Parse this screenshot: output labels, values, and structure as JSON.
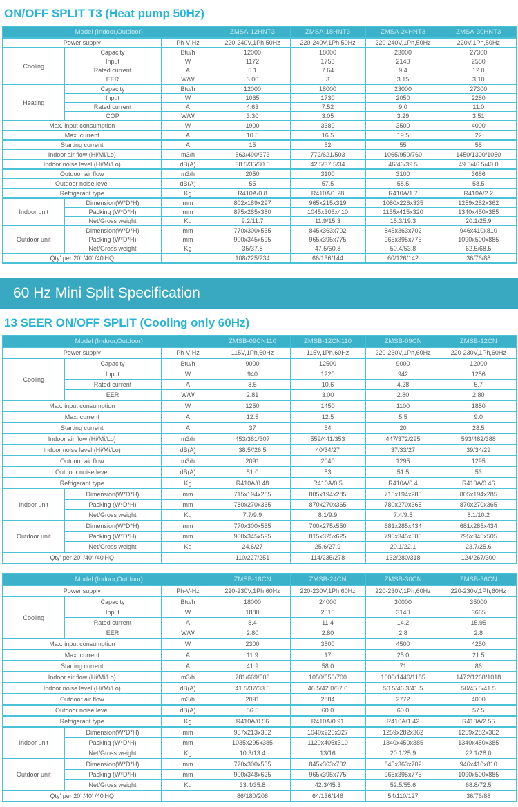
{
  "page": {
    "title1": "ON/OFF SPLIT T3 (Heat pump 50Hz)",
    "banner": "60 Hz Mini Split Specification",
    "title2": "13 SEER ON/OFF SPLIT (Cooling only 60Hz)"
  },
  "colors": {
    "accent_cyan": "#27b4d6",
    "table_header_bg": "#3bb2ca",
    "table_header_text": "#c9ecf4",
    "table_border": "#49c1d7",
    "banner_bg": "#38a9c0",
    "body_text": "#595a5c"
  },
  "tables": [
    {
      "model_label": "Model (Indoor,Outdoor)",
      "models": [
        "ZMSA-12HNT3",
        "ZMSA-18HNT3",
        "ZMSA-24HNT3",
        "ZMSA-30HNT3"
      ],
      "rows": [
        {
          "label": "Power supply",
          "unit": "Ph-V-Hz",
          "values": [
            "220-240V,1Ph,50Hz",
            "220-240V,1Ph,50Hz",
            "220-240V,1Ph,50Hz",
            "220V,1Ph,50Hz"
          ],
          "section": true
        },
        {
          "group": "Cooling",
          "group_span": 4,
          "label": "Capacity",
          "unit": "Btu/h",
          "values": [
            "12000",
            "18000",
            "23000",
            "27300"
          ],
          "section": true
        },
        {
          "in_group": true,
          "label": "Input",
          "unit": "W",
          "values": [
            "1172",
            "1758",
            "2140",
            "2580"
          ]
        },
        {
          "in_group": true,
          "label": "Rated current",
          "unit": "A",
          "values": [
            "5.1",
            "7.64",
            "9.4",
            "12.0"
          ]
        },
        {
          "in_group": true,
          "label": "EER",
          "unit": "W/W",
          "values": [
            "3.00",
            "3",
            "3.15",
            "3.10"
          ]
        },
        {
          "group": "Heating",
          "group_span": 4,
          "label": "Capacity",
          "unit": "Btu/h",
          "values": [
            "12000",
            "18000",
            "23000",
            "27300"
          ],
          "section": true
        },
        {
          "in_group": true,
          "label": "Input",
          "unit": "W",
          "values": [
            "1065",
            "1730",
            "2050",
            "2280"
          ]
        },
        {
          "in_group": true,
          "label": "Rated current",
          "unit": "A",
          "values": [
            "4.63",
            "7.52",
            "9.0",
            "11.0"
          ]
        },
        {
          "in_group": true,
          "label": "COP",
          "unit": "W/W",
          "values": [
            "3.30",
            "3.05",
            "3.29",
            "3.51"
          ]
        },
        {
          "label": "Max. input consumption",
          "unit": "W",
          "values": [
            "1900",
            "3380",
            "3500",
            "4000"
          ],
          "section": true
        },
        {
          "label": "Max. current",
          "unit": "A",
          "values": [
            "10.5",
            "16.5",
            "19.5",
            "22"
          ],
          "section": true
        },
        {
          "label": "Starting current",
          "unit": "A",
          "values": [
            "15",
            "52",
            "55",
            "58"
          ],
          "section": true
        },
        {
          "label": "Indoor air flow (Hi/Mi/Lo)",
          "unit": "m3/h",
          "values": [
            "563/490/373",
            "772/621/503",
            "1065/950/760",
            "1450/1300/1050"
          ],
          "section": true
        },
        {
          "label": "Indoor noise level (Hi/Mi/Lo)",
          "unit": "dB(A)",
          "values": [
            "38.5/35/30.5",
            "42.5/37.5/34",
            "46/43/39.5",
            "49.5/46.5/40.0"
          ],
          "section": true
        },
        {
          "label": "Outdoor air flow",
          "unit": "m3/h",
          "values": [
            "2050",
            "3100",
            "3100",
            "3686"
          ],
          "section": true
        },
        {
          "label": "Outdoor noise level",
          "unit": "dB(A)",
          "values": [
            "55",
            "57.5",
            "58.5",
            "58.5"
          ],
          "section": true
        },
        {
          "label": "Refrigerant type",
          "unit": "Kg",
          "values": [
            "R410A/0.8",
            "R410A/1.28",
            "R410A/1.7",
            "R410A/2.2"
          ],
          "section": true
        },
        {
          "group": "Indoor unit",
          "group_span": 3,
          "label": "Dimension(W*D*H)",
          "unit": "mm",
          "values": [
            "802x189x297",
            "965x215x319",
            "1080x226x335",
            "1259x282x362"
          ],
          "section": true
        },
        {
          "in_group": true,
          "label": "Packing   (W*D*H)",
          "unit": "mm",
          "values": [
            "875x285x380",
            "1045x305x410",
            "1155x415x320",
            "1340x450x385"
          ]
        },
        {
          "in_group": true,
          "label": "Net/Gross weight",
          "unit": "Kg",
          "values": [
            "9.2/11.7",
            "11.9/15.3",
            "15.3/19.3",
            "20.1/25.9"
          ]
        },
        {
          "group": "Outdoor unit",
          "group_span": 3,
          "label": "Dimension(W*D*H)",
          "unit": "mm",
          "values": [
            "770x300x555",
            "845x363x702",
            "845x363x702",
            "946x410x810"
          ],
          "section": true
        },
        {
          "in_group": true,
          "label": "Packing  (W*D*H)",
          "unit": "mm",
          "values": [
            "900x345x595",
            "965x395x775",
            "965x395x775",
            "1090x500x885"
          ]
        },
        {
          "in_group": true,
          "label": "Net/Gross weight",
          "unit": "Kg",
          "values": [
            "35/37.8",
            "47.5/50.8",
            "50.4/53.8",
            "62.5/68.5"
          ]
        },
        {
          "label": "Qty' per 20'  /40'  /40'HQ",
          "unit": "",
          "values": [
            "108/225/234",
            "66/136/144",
            "60/126/142",
            "36/76/88"
          ],
          "section": true
        }
      ]
    },
    {
      "model_label": "Model (Indoor,Outdoor)",
      "models": [
        "ZMSB-09CN110",
        "ZMSB-12CN110",
        "ZMSB-09CN",
        "ZMSB-12CN"
      ],
      "rows": [
        {
          "label": "Power supply",
          "unit": "Ph-V-Hz",
          "values": [
            "115V,1Ph,60Hz",
            "115V,1Ph,60Hz",
            "220-230V,1Ph,60Hz",
            "220-230V,1Ph,60Hz"
          ],
          "section": true
        },
        {
          "group": "Cooling",
          "group_span": 4,
          "label": "Capacity",
          "unit": "Btu/h",
          "values": [
            "9000",
            "12500",
            "9000",
            "12000"
          ],
          "section": true
        },
        {
          "in_group": true,
          "label": "Input",
          "unit": "W",
          "values": [
            "940",
            "1220",
            "942",
            "1256"
          ]
        },
        {
          "in_group": true,
          "label": "Rated current",
          "unit": "A",
          "values": [
            "8.5",
            "10.6",
            "4.28",
            "5.7"
          ]
        },
        {
          "in_group": true,
          "label": "EER",
          "unit": "W/W",
          "values": [
            "2.81",
            "3.00",
            "2.80",
            "2.80"
          ]
        },
        {
          "label": "Max. input consumption",
          "unit": "W",
          "values": [
            "1250",
            "1450",
            "1100",
            "1850"
          ],
          "section": true
        },
        {
          "label": "Max. current",
          "unit": "A",
          "values": [
            "12.5",
            "12.5",
            "5.5",
            "9.0"
          ],
          "section": true
        },
        {
          "label": "Starting current",
          "unit": "A",
          "values": [
            "37",
            "54",
            "20",
            "28.5"
          ],
          "section": true
        },
        {
          "label": "Indoor air flow (Hi/Mi/Lo)",
          "unit": "m3/h",
          "values": [
            "453/381/307",
            "559/441/353",
            "447/372/295",
            "593/482/388"
          ],
          "section": true
        },
        {
          "label": "Indoor noise level (Hi/Mi/Lo)",
          "unit": "dB(A)",
          "values": [
            "38.5//26.5",
            "40/34/27",
            "37/33/27",
            "39/34/29"
          ],
          "section": true
        },
        {
          "label": "Outdoor air flow",
          "unit": "m3/h",
          "values": [
            "2091",
            "2040",
            "1295",
            "1295"
          ],
          "section": true
        },
        {
          "label": "Outdoor noise level",
          "unit": "dB(A)",
          "values": [
            "51.0",
            "53",
            "51.5",
            "53"
          ],
          "section": true
        },
        {
          "label": "Refrigerant type",
          "unit": "Kg",
          "values": [
            "R410A/0.48",
            "R410A/0.5",
            "R410A/0.4",
            "R410A/0.46"
          ],
          "section": true
        },
        {
          "group": "Indoor unit",
          "group_span": 3,
          "label": "Dimension(W*D*H)",
          "unit": "mm",
          "values": [
            "715x194x285",
            "805x194x285",
            "715x194x285",
            "805x194x285"
          ],
          "section": true
        },
        {
          "in_group": true,
          "label": "Packing   (W*D*H)",
          "unit": "mm",
          "values": [
            "780x270x365",
            "870x270x365",
            "780x270x365",
            "870x270x365"
          ]
        },
        {
          "in_group": true,
          "label": "Net/Gross weight",
          "unit": "Kg",
          "values": [
            "7.7/9.9",
            "8.1/9.9",
            "7.4/9.5",
            "8.1/10.2"
          ]
        },
        {
          "group": "Outdoor unit",
          "group_span": 3,
          "label": "Dimension(W*D*H)",
          "unit": "mm",
          "values": [
            "770x300x555",
            "700x275x550",
            "681x285x434",
            "681x285x434"
          ],
          "section": true
        },
        {
          "in_group": true,
          "label": "Packing  (W*D*H)",
          "unit": "mm",
          "values": [
            "900x345x595",
            "815x325x625",
            "795x345x505",
            "795x345x505"
          ]
        },
        {
          "in_group": true,
          "label": "Net/Gross weight",
          "unit": "Kg",
          "values": [
            "24.6/27",
            "25.6/27.9",
            "20.1/22.1",
            "23.7/25.6"
          ]
        },
        {
          "label": "Qty'  per 20'  /40'  /40'HQ",
          "unit": "",
          "values": [
            "110/227/251",
            "114/235/278",
            "132/280/318",
            "124/267/300"
          ],
          "section": true
        }
      ]
    },
    {
      "model_label": "Model (Indoor,Outdoor)",
      "models": [
        "ZMSB-18CN",
        "ZMSB-24CN",
        "ZMSB-30CN",
        "ZMSB-36CN"
      ],
      "rows": [
        {
          "label": "Power supply",
          "unit": "Ph-V-Hz",
          "values": [
            "220-230V,1Ph,60Hz",
            "220-230V,1Ph,60Hz",
            "220-230V,1Ph,60Hz",
            "220-230V,1Ph,60Hz"
          ],
          "section": true
        },
        {
          "group": "Cooling",
          "group_span": 4,
          "label": "Capacity",
          "unit": "Btu/h",
          "values": [
            "18000",
            "24000",
            "30000",
            "35000"
          ],
          "section": true
        },
        {
          "in_group": true,
          "label": "Input",
          "unit": "W",
          "values": [
            "1880",
            "2510",
            "3140",
            "3665"
          ]
        },
        {
          "in_group": true,
          "label": "Rated current",
          "unit": "A",
          "values": [
            "8.4",
            "11.4",
            "14.2",
            "15.95"
          ]
        },
        {
          "in_group": true,
          "label": "EER",
          "unit": "W/W",
          "values": [
            "2.80",
            "2.80",
            "2.8",
            "2.8"
          ]
        },
        {
          "label": "Max. input consumption",
          "unit": "W",
          "values": [
            "2300",
            "3500",
            "4500",
            "4250"
          ],
          "section": true
        },
        {
          "label": "Max. current",
          "unit": "A",
          "values": [
            "11.9",
            "17",
            "25.0",
            "21.5"
          ],
          "section": true
        },
        {
          "label": "Starting current",
          "unit": "A",
          "values": [
            "41.9",
            "58.0",
            "71",
            "86"
          ],
          "section": true
        },
        {
          "label": "Indoor air flow (Hi/Mi/Lo)",
          "unit": "m3/h",
          "values": [
            "781/669/508",
            "1050/850/700",
            "1600/1440/1185",
            "1472/1268/1018"
          ],
          "section": true
        },
        {
          "label": "Indoor noise level (Hi/Mi/Lo)",
          "unit": "dB(A)",
          "values": [
            "41.5/37/33.5",
            "46.5/42.0/37.0",
            "50.5/46.3/41.5",
            "50/45.5/41.5"
          ],
          "section": true
        },
        {
          "label": "Outdoor air flow",
          "unit": "m3/h",
          "values": [
            "2091",
            "2884",
            "2772",
            "4000"
          ],
          "section": true
        },
        {
          "label": "Outdoor noise level",
          "unit": "dB(A)",
          "values": [
            "56.5",
            "60.0",
            "60.0",
            "57.5"
          ],
          "section": true
        },
        {
          "label": "Refrigerant type",
          "unit": "Kg",
          "values": [
            "R410A/0.56",
            "R410A/0.91",
            "R410A/1.42",
            "R410A/2.55"
          ],
          "section": true
        },
        {
          "group": "Indoor unit",
          "group_span": 3,
          "label": "Dimension(W*D*H)",
          "unit": "mm",
          "values": [
            "957x213x302",
            "1040x220x327",
            "1259x282x362",
            "1259x282x362"
          ],
          "section": true
        },
        {
          "in_group": true,
          "label": "Packing   (W*D*H)",
          "unit": "mm",
          "values": [
            "1035x295x385",
            "1120x405x310",
            "1340x450x385",
            "1340x450x385"
          ]
        },
        {
          "in_group": true,
          "label": "Net/Gross weight",
          "unit": "Kg",
          "values": [
            "10.3/13.4",
            "13/16",
            "20.1/25.9",
            "22.1/28.0"
          ]
        },
        {
          "group": "Outdoor unit",
          "group_span": 3,
          "label": "Dimension(W*D*H)",
          "unit": "mm",
          "values": [
            "770x300x555",
            "845x363x702",
            "845x363x702",
            "946x410x810"
          ],
          "section": true
        },
        {
          "in_group": true,
          "label": "Packing  (W*D*H)",
          "unit": "mm",
          "values": [
            "900x348x625",
            "965x395x775",
            "965x395x775",
            "1090x500x885"
          ]
        },
        {
          "in_group": true,
          "label": "Net/Gross weight",
          "unit": "Kg",
          "values": [
            "33.4/35.8",
            "42.3/45.3",
            "52.5/55.6",
            "68.8/72.5"
          ]
        },
        {
          "label": "Qty'  per 20'  /40'  /40'HQ",
          "unit": "",
          "values": [
            "86/180/208",
            "64/136/146",
            "54/110/127",
            "36/76/88"
          ],
          "section": true
        }
      ]
    }
  ]
}
